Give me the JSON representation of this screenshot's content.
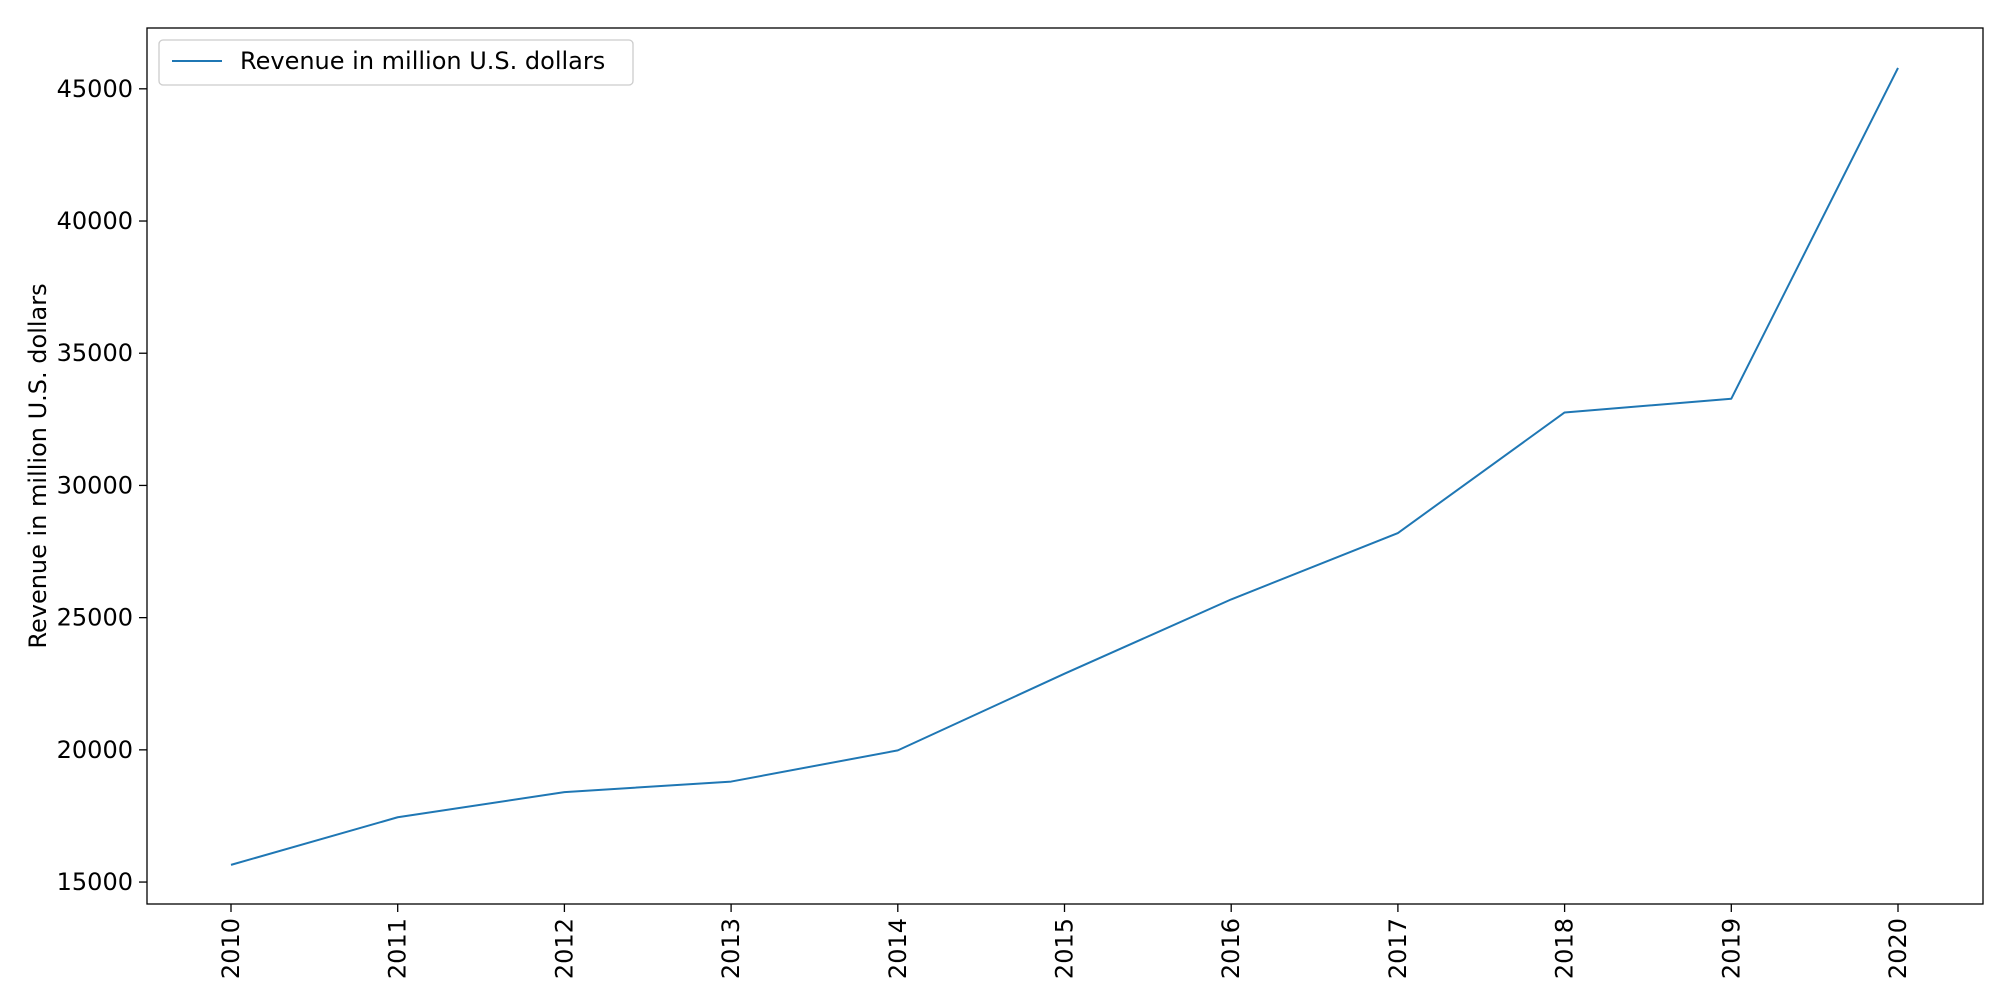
{
  "chart_data": {
    "type": "line",
    "title": "",
    "xlabel": "",
    "ylabel": "Revenue in million U.S. dollars",
    "x": [
      "2010",
      "2011",
      "2012",
      "2013",
      "2014",
      "2015",
      "2016",
      "2017",
      "2018",
      "2019",
      "2020"
    ],
    "series": [
      {
        "name": "Revenue in million U.S. dollars",
        "color": "#1f77b4",
        "values": [
          15650,
          17450,
          18400,
          18800,
          19980,
          22880,
          25690,
          28200,
          32760,
          33280,
          45790
        ]
      }
    ],
    "ylim": [
      14170,
      47300
    ],
    "yticks": [
      "15000",
      "20000",
      "25000",
      "30000",
      "35000",
      "40000",
      "45000"
    ],
    "grid": false,
    "legend": {
      "position": "top-left",
      "entries": [
        "Revenue in million U.S. dollars"
      ]
    }
  }
}
